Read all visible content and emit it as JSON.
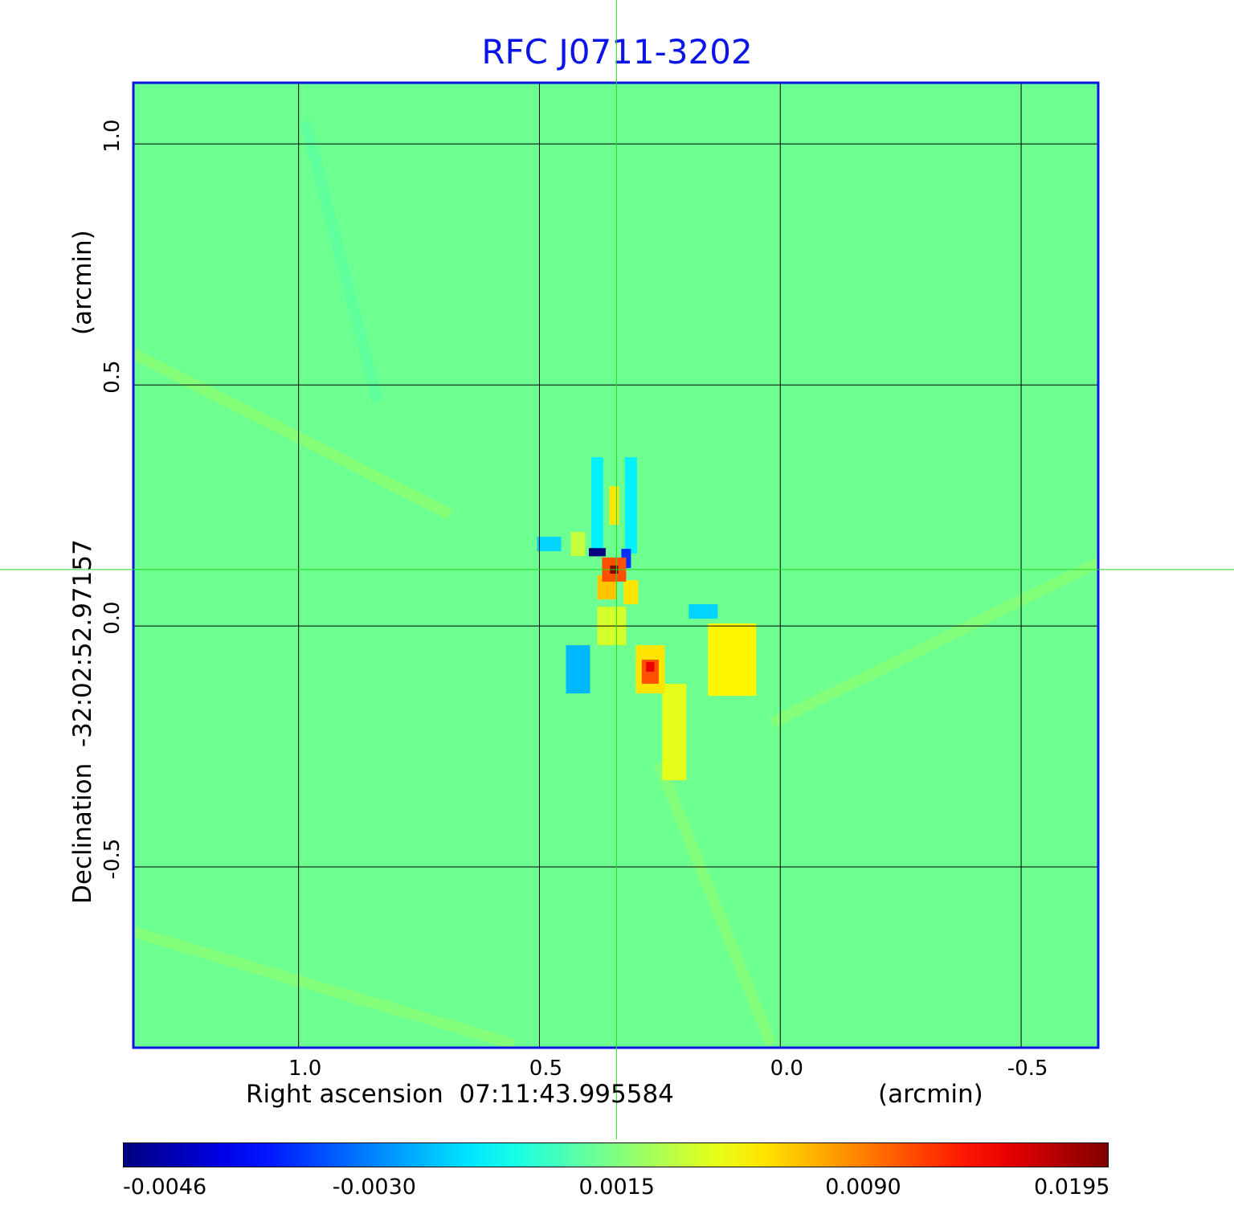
{
  "chart_data": {
    "type": "heatmap",
    "title": "RFC J0711-3202",
    "xlabel": "Right ascension  07:11:43.995584",
    "xunit": "(arcmin)",
    "ylabel": "Declination  -32:02:52.97157",
    "yunit": "(arcmin)",
    "xlim": [
      1.343,
      -0.66
    ],
    "ylim": [
      -0.875,
      1.127
    ],
    "xticks": [
      {
        "v": 1.0,
        "label": "1.0"
      },
      {
        "v": 0.5,
        "label": "0.5"
      },
      {
        "v": 0.0,
        "label": "0.0"
      },
      {
        "v": -0.5,
        "label": "-0.5"
      }
    ],
    "yticks": [
      {
        "v": 1.0,
        "label": "1.0"
      },
      {
        "v": 0.5,
        "label": "0.5"
      },
      {
        "v": 0.0,
        "label": "0.0"
      },
      {
        "v": -0.5,
        "label": "-0.5"
      }
    ],
    "grid": true,
    "crosshair": {
      "x": 0.34,
      "y": 0.117
    },
    "colormap": "jet",
    "colorbar": {
      "placement": "bottom",
      "ticks": [
        "-0.0046",
        "-0.0030",
        "0.0015",
        "0.0090",
        "0.0195"
      ]
    },
    "background_value": 0.0012,
    "features": [
      {
        "x": 0.42,
        "y": 0.17,
        "w": 0.03,
        "h": 0.05,
        "v": 0.0035
      },
      {
        "x": 0.48,
        "y": 0.17,
        "w": 0.05,
        "h": 0.03,
        "v": -0.0015
      },
      {
        "x": 0.38,
        "y": 0.25,
        "w": 0.025,
        "h": 0.2,
        "v": -0.001
      },
      {
        "x": 0.31,
        "y": 0.25,
        "w": 0.025,
        "h": 0.2,
        "v": -0.001
      },
      {
        "x": 0.345,
        "y": 0.25,
        "w": 0.02,
        "h": 0.08,
        "v": 0.006
      },
      {
        "x": 0.35,
        "y": 0.0,
        "w": 0.06,
        "h": 0.08,
        "v": 0.004
      },
      {
        "x": 0.38,
        "y": 0.153,
        "w": 0.035,
        "h": 0.017,
        "v": -0.0046
      },
      {
        "x": 0.32,
        "y": 0.14,
        "w": 0.02,
        "h": 0.04,
        "v": -0.0035
      },
      {
        "x": 0.36,
        "y": 0.08,
        "w": 0.04,
        "h": 0.05,
        "v": 0.007
      },
      {
        "x": 0.31,
        "y": 0.07,
        "w": 0.03,
        "h": 0.05,
        "v": 0.006
      },
      {
        "x": 0.345,
        "y": 0.117,
        "w": 0.05,
        "h": 0.05,
        "v": 0.011
      },
      {
        "x": 0.345,
        "y": 0.117,
        "w": 0.017,
        "h": 0.017,
        "v": 0.0195
      },
      {
        "x": 0.42,
        "y": -0.09,
        "w": 0.05,
        "h": 0.1,
        "v": -0.002
      },
      {
        "x": 0.1,
        "y": -0.07,
        "w": 0.1,
        "h": 0.15,
        "v": 0.0055
      },
      {
        "x": 0.22,
        "y": -0.22,
        "w": 0.05,
        "h": 0.2,
        "v": 0.0045
      },
      {
        "x": 0.27,
        "y": -0.09,
        "w": 0.06,
        "h": 0.1,
        "v": 0.006
      },
      {
        "x": 0.27,
        "y": -0.095,
        "w": 0.035,
        "h": 0.05,
        "v": 0.011
      },
      {
        "x": 0.27,
        "y": -0.085,
        "w": 0.017,
        "h": 0.02,
        "v": 0.015
      },
      {
        "x": 0.16,
        "y": 0.03,
        "w": 0.06,
        "h": 0.03,
        "v": -0.0015
      }
    ]
  }
}
